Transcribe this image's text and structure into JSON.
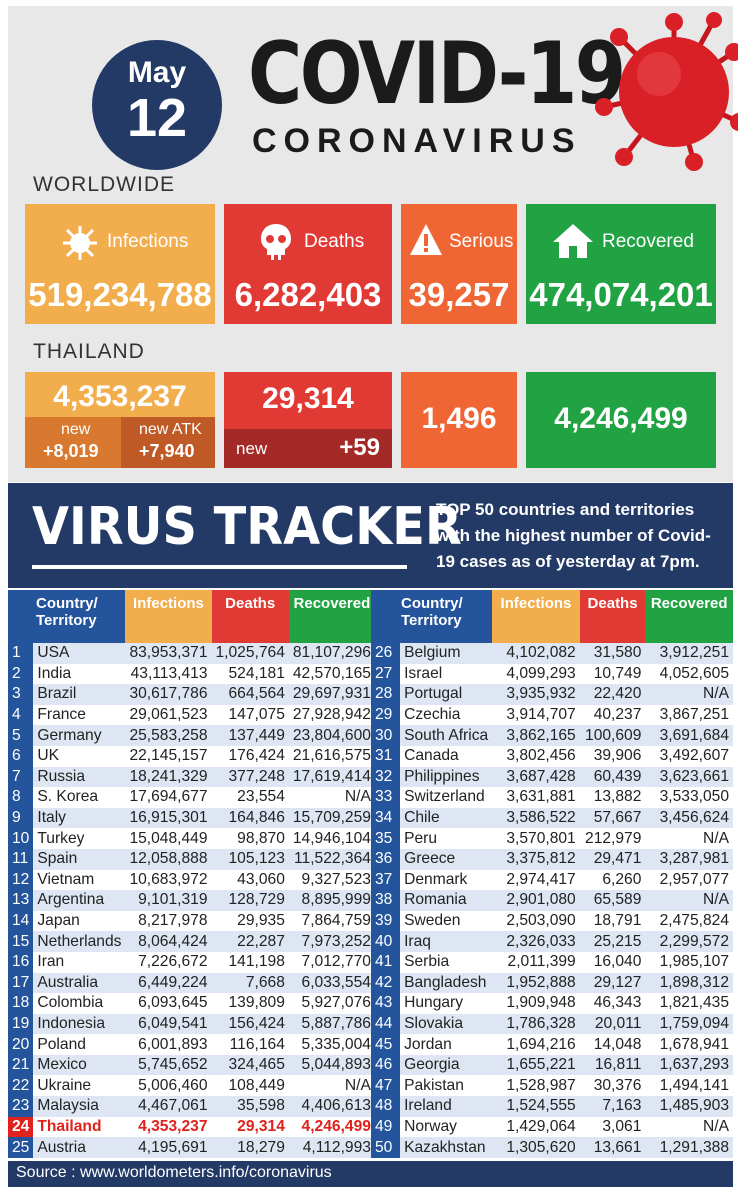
{
  "header": {
    "month": "May",
    "day": "12",
    "title": "COVID-19",
    "subtitle": "CORONAVIRUS"
  },
  "worldwide": {
    "label": "WORLDWIDE",
    "infections_label": "Infections",
    "infections": "519,234,788",
    "deaths_label": "Deaths",
    "deaths": "6,282,403",
    "serious_label": "Serious",
    "serious": "39,257",
    "recovered_label": "Recovered",
    "recovered": "474,074,201"
  },
  "thailand": {
    "label": "THAILAND",
    "infections": "4,353,237",
    "new_label": "new",
    "new_value": "+8,019",
    "atk_label": "new ATK",
    "atk_value": "+7,940",
    "deaths": "29,314",
    "deaths_new_label": "new",
    "deaths_new_value": "+59",
    "serious": "1,496",
    "recovered": "4,246,499"
  },
  "tracker": {
    "title": "VIRUS TRACKER",
    "desc_bold": "TOP 50",
    "desc_rest": " countries and territories with the highest number of Covid-19 cases as of yesterday at 7pm.",
    "col_country": "Country/ Territory",
    "col_infections": "Infections",
    "col_deaths": "Deaths",
    "col_recovered": "Recovered"
  },
  "colors": {
    "navy": "#243a66",
    "orange": "#f2ad4c",
    "red": "#e13a35",
    "deep_orange": "#ef6634",
    "green": "#21a344",
    "highlight": "#e0211c"
  },
  "table_left": [
    [
      "1",
      "USA",
      "83,953,371",
      "1,025,764",
      "81,107,296"
    ],
    [
      "2",
      "India",
      "43,113,413",
      "524,181",
      "42,570,165"
    ],
    [
      "3",
      "Brazil",
      "30,617,786",
      "664,564",
      "29,697,931"
    ],
    [
      "4",
      "France",
      "29,061,523",
      "147,075",
      "27,928,942"
    ],
    [
      "5",
      "Germany",
      "25,583,258",
      "137,449",
      "23,804,600"
    ],
    [
      "6",
      "UK",
      "22,145,157",
      "176,424",
      "21,616,575"
    ],
    [
      "7",
      "Russia",
      "18,241,329",
      "377,248",
      "17,619,414"
    ],
    [
      "8",
      "S. Korea",
      "17,694,677",
      "23,554",
      "N/A"
    ],
    [
      "9",
      "Italy",
      "16,915,301",
      "164,846",
      "15,709,259"
    ],
    [
      "10",
      "Turkey",
      "15,048,449",
      "98,870",
      "14,946,104"
    ],
    [
      "11",
      "Spain",
      "12,058,888",
      "105,123",
      "11,522,364"
    ],
    [
      "12",
      "Vietnam",
      "10,683,972",
      "43,060",
      "9,327,523"
    ],
    [
      "13",
      "Argentina",
      "9,101,319",
      "128,729",
      "8,895,999"
    ],
    [
      "14",
      "Japan",
      "8,217,978",
      "29,935",
      "7,864,759"
    ],
    [
      "15",
      "Netherlands",
      "8,064,424",
      "22,287",
      "7,973,252"
    ],
    [
      "16",
      "Iran",
      "7,226,672",
      "141,198",
      "7,012,770"
    ],
    [
      "17",
      "Australia",
      "6,449,224",
      "7,668",
      "6,033,554"
    ],
    [
      "18",
      "Colombia",
      "6,093,645",
      "139,809",
      "5,927,076"
    ],
    [
      "19",
      "Indonesia",
      "6,049,541",
      "156,424",
      "5,887,786"
    ],
    [
      "20",
      "Poland",
      "6,001,893",
      "116,164",
      "5,335,004"
    ],
    [
      "21",
      "Mexico",
      "5,745,652",
      "324,465",
      "5,044,893"
    ],
    [
      "22",
      "Ukraine",
      "5,006,460",
      "108,449",
      "N/A"
    ],
    [
      "23",
      "Malaysia",
      "4,467,061",
      "35,598",
      "4,406,613"
    ],
    [
      "24",
      "Thailand",
      "4,353,237",
      "29,314",
      "4,246,499"
    ],
    [
      "25",
      "Austria",
      "4,195,691",
      "18,279",
      "4,112,993"
    ]
  ],
  "table_right": [
    [
      "26",
      "Belgium",
      "4,102,082",
      "31,580",
      "3,912,251"
    ],
    [
      "27",
      "Israel",
      "4,099,293",
      "10,749",
      "4,052,605"
    ],
    [
      "28",
      "Portugal",
      "3,935,932",
      "22,420",
      "N/A"
    ],
    [
      "29",
      "Czechia",
      "3,914,707",
      "40,237",
      "3,867,251"
    ],
    [
      "30",
      "South Africa",
      "3,862,165",
      "100,609",
      "3,691,684"
    ],
    [
      "31",
      "Canada",
      "3,802,456",
      "39,906",
      "3,492,607"
    ],
    [
      "32",
      "Philippines",
      "3,687,428",
      "60,439",
      "3,623,661"
    ],
    [
      "33",
      "Switzerland",
      "3,631,881",
      "13,882",
      "3,533,050"
    ],
    [
      "34",
      "Chile",
      "3,586,522",
      "57,667",
      "3,456,624"
    ],
    [
      "35",
      "Peru",
      "3,570,801",
      "212,979",
      "N/A"
    ],
    [
      "36",
      "Greece",
      "3,375,812",
      "29,471",
      "3,287,981"
    ],
    [
      "37",
      "Denmark",
      "2,974,417",
      "6,260",
      "2,957,077"
    ],
    [
      "38",
      "Romania",
      "2,901,080",
      "65,589",
      "N/A"
    ],
    [
      "39",
      "Sweden",
      "2,503,090",
      "18,791",
      "2,475,824"
    ],
    [
      "40",
      "Iraq",
      "2,326,033",
      "25,215",
      "2,299,572"
    ],
    [
      "41",
      "Serbia",
      "2,011,399",
      "16,040",
      "1,985,107"
    ],
    [
      "42",
      "Bangladesh",
      "1,952,888",
      "29,127",
      "1,898,312"
    ],
    [
      "43",
      "Hungary",
      "1,909,948",
      "46,343",
      "1,821,435"
    ],
    [
      "44",
      "Slovakia",
      "1,786,328",
      "20,011",
      "1,759,094"
    ],
    [
      "45",
      "Jordan",
      "1,694,216",
      "14,048",
      "1,678,941"
    ],
    [
      "46",
      "Georgia",
      "1,655,221",
      "16,811",
      "1,637,293"
    ],
    [
      "47",
      "Pakistan",
      "1,528,987",
      "30,376",
      "1,494,141"
    ],
    [
      "48",
      "Ireland",
      "1,524,555",
      "7,163",
      "1,485,903"
    ],
    [
      "49",
      "Norway",
      "1,429,064",
      "3,061",
      "N/A"
    ],
    [
      "50",
      "Kazakhstan",
      "1,305,620",
      "13,661",
      "1,291,388"
    ]
  ],
  "source": "Source : www.worldometers.info/coronavirus"
}
